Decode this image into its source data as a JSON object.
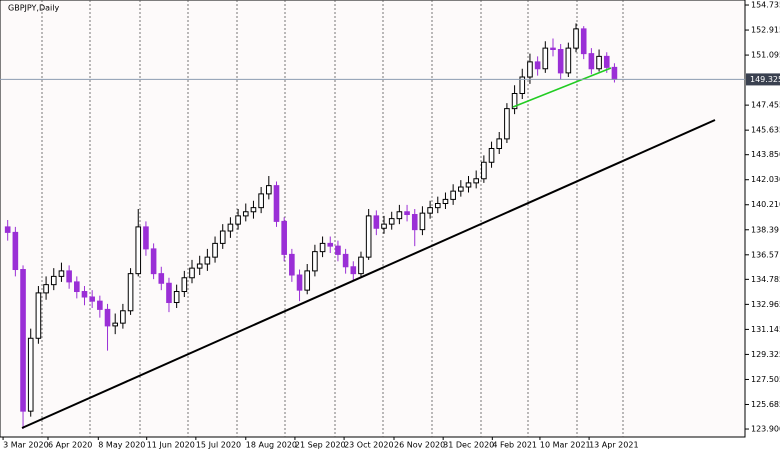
{
  "chart_data": {
    "type": "candlestick",
    "title": "GBPJPY,Daily",
    "open": [
      138.6,
      138.2,
      135.5,
      125.2,
      130.5,
      133.8,
      134.4,
      135.0,
      135.4,
      134.6,
      133.9,
      133.5,
      133.2,
      132.6,
      131.4,
      131.6,
      132.5,
      135.2,
      138.6,
      137.0,
      135.2,
      134.5,
      133.1,
      133.9,
      134.9,
      135.6,
      135.9,
      136.4,
      137.4,
      138.3,
      138.8,
      139.4,
      139.7,
      140.0,
      141.0,
      141.6,
      139.0,
      136.6,
      135.1,
      134.0,
      135.4,
      136.8,
      137.4,
      137.2,
      136.6,
      135.7,
      135.2,
      136.4,
      139.4,
      138.5,
      138.8,
      139.2,
      139.7,
      139.5,
      138.4,
      139.6,
      140.0,
      140.3,
      140.6,
      141.2,
      141.5,
      141.8,
      142.1,
      143.3,
      144.3,
      145.0,
      147.2,
      148.3,
      149.5,
      150.6,
      150.1,
      151.6,
      151.5,
      149.8,
      151.6,
      153.0,
      151.2,
      150.1,
      151.0,
      150.2
    ],
    "high": [
      139.1,
      138.6,
      135.8,
      131.2,
      134.3,
      135.0,
      135.6,
      136.0,
      135.8,
      135.0,
      134.3,
      134.0,
      133.6,
      133.0,
      132.3,
      133.0,
      135.6,
      139.9,
      139.0,
      137.4,
      135.7,
      134.9,
      134.4,
      135.4,
      136.2,
      136.5,
      137.0,
      137.9,
      138.8,
      139.3,
      139.9,
      140.3,
      140.5,
      141.5,
      142.3,
      141.9,
      139.3,
      137.0,
      135.5,
      135.9,
      137.3,
      137.9,
      137.9,
      137.6,
      137.0,
      136.1,
      136.8,
      139.9,
      139.8,
      139.4,
      139.7,
      140.2,
      140.2,
      139.9,
      140.1,
      140.5,
      140.8,
      141.1,
      141.7,
      142.0,
      142.3,
      142.7,
      143.8,
      144.8,
      145.5,
      147.6,
      148.9,
      150.1,
      151.2,
      151.0,
      152.1,
      152.3,
      151.9,
      152.0,
      153.4,
      153.2,
      151.6,
      151.5,
      151.3,
      150.5
    ],
    "low": [
      137.6,
      135.0,
      123.9,
      124.8,
      130.1,
      133.3,
      134.0,
      134.6,
      134.1,
      133.4,
      132.9,
      132.7,
      132.0,
      129.6,
      130.8,
      131.2,
      132.2,
      135.0,
      136.5,
      134.8,
      134.0,
      132.4,
      132.7,
      133.5,
      134.5,
      135.1,
      135.4,
      136.0,
      137.0,
      137.8,
      138.4,
      139.0,
      139.2,
      139.6,
      140.6,
      138.6,
      136.1,
      134.6,
      133.2,
      133.7,
      135.0,
      136.4,
      136.7,
      136.1,
      135.2,
      134.7,
      134.9,
      136.2,
      138.0,
      138.1,
      138.4,
      138.8,
      139.0,
      137.2,
      138.0,
      139.2,
      139.6,
      139.9,
      140.2,
      140.8,
      141.1,
      141.4,
      141.8,
      142.9,
      143.9,
      144.7,
      146.8,
      147.9,
      149.0,
      149.6,
      149.8,
      151.0,
      149.3,
      149.5,
      151.3,
      150.8,
      149.7,
      149.9,
      149.8,
      149.1
    ],
    "close": [
      138.2,
      135.5,
      125.2,
      130.5,
      133.8,
      134.4,
      135.0,
      135.4,
      134.6,
      133.9,
      133.5,
      133.2,
      132.6,
      131.4,
      131.6,
      132.5,
      135.2,
      138.6,
      137.0,
      135.2,
      134.5,
      133.1,
      133.9,
      134.9,
      135.6,
      135.9,
      136.4,
      137.4,
      138.3,
      138.8,
      139.4,
      139.7,
      140.0,
      141.0,
      141.6,
      139.0,
      136.6,
      135.1,
      134.0,
      135.4,
      136.8,
      137.4,
      137.2,
      136.6,
      135.7,
      135.2,
      136.4,
      139.4,
      138.5,
      138.8,
      139.2,
      139.7,
      139.5,
      138.4,
      139.6,
      140.0,
      140.3,
      140.6,
      141.2,
      141.5,
      141.8,
      142.1,
      143.3,
      144.3,
      145.0,
      147.2,
      148.3,
      149.5,
      150.6,
      150.1,
      151.6,
      151.5,
      149.8,
      151.6,
      153.0,
      151.2,
      150.1,
      151.0,
      150.2,
      149.325
    ],
    "up_color": "#000000",
    "down_color": "#9a2fd6",
    "last_price": 149.325,
    "xlim": [
      -1,
      96
    ],
    "xticks": [
      {
        "value": -0.6,
        "label": "3 Mar 2020"
      },
      {
        "value": 5.25,
        "label": "6 Apr 2020"
      },
      {
        "value": 11.8,
        "label": "8 May 2020"
      },
      {
        "value": 18.1,
        "label": "11 Jun 2020"
      },
      {
        "value": 24.5,
        "label": "15 Jul 2020"
      },
      {
        "value": 31,
        "label": "18 Aug 2020"
      },
      {
        "value": 37.4,
        "label": "21 Sep 2020"
      },
      {
        "value": 43.8,
        "label": "23 Oct 2020"
      },
      {
        "value": 50.3,
        "label": "26 Nov 2020"
      },
      {
        "value": 56.7,
        "label": "31 Dec 2020"
      },
      {
        "value": 63.1,
        "label": "4 Feb 2021"
      },
      {
        "value": 69.3,
        "label": "10 Mar 2021"
      },
      {
        "value": 75.7,
        "label": "13 Apr 2021"
      }
    ],
    "ylim": [
      123.32,
      155.1
    ],
    "yticks": [
      154.735,
      152.915,
      151.095,
      147.455,
      145.635,
      {
        "value": 143.85,
        "label": "143.850"
      },
      {
        "value": 142.03,
        "label": "142.030"
      },
      {
        "value": 140.21,
        "label": "140.210"
      },
      138.39,
      136.57,
      134.785,
      132.965,
      131.145,
      129.325,
      127.505,
      125.685,
      {
        "value": 123.9,
        "label": "123.900"
      }
    ]
  }
}
